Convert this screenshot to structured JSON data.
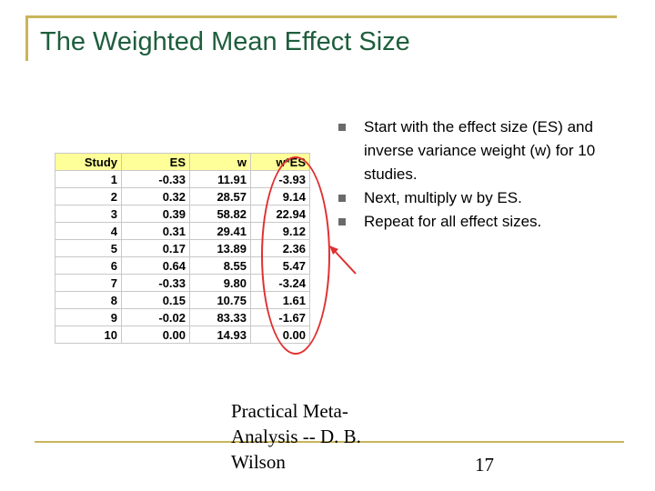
{
  "slide": {
    "title": "The Weighted Mean Effect Size",
    "bullets": [
      "Start with the effect size (ES) and inverse variance weight (w) for 10 studies.",
      "Next, multiply w by ES.",
      "Repeat for all effect sizes."
    ],
    "footer": "Practical Meta-Analysis -- D. B. Wilson",
    "page_number": "17"
  },
  "table": {
    "headers": [
      "Study",
      "ES",
      "w",
      "w*ES"
    ],
    "rows": [
      [
        "1",
        "-0.33",
        "11.91",
        "-3.93"
      ],
      [
        "2",
        "0.32",
        "28.57",
        "9.14"
      ],
      [
        "3",
        "0.39",
        "58.82",
        "22.94"
      ],
      [
        "4",
        "0.31",
        "29.41",
        "9.12"
      ],
      [
        "5",
        "0.17",
        "13.89",
        "2.36"
      ],
      [
        "6",
        "0.64",
        "8.55",
        "5.47"
      ],
      [
        "7",
        "-0.33",
        "9.80",
        "-3.24"
      ],
      [
        "8",
        "0.15",
        "10.75",
        "1.61"
      ],
      [
        "9",
        "-0.02",
        "83.33",
        "-1.67"
      ],
      [
        "10",
        "0.00",
        "14.93",
        "0.00"
      ]
    ]
  },
  "colors": {
    "title": "#1e5e3c",
    "frame": "#c8b55a",
    "header_fill": "#ffff99",
    "highlight": "#e03030",
    "bullet": "#6a6a6a"
  }
}
